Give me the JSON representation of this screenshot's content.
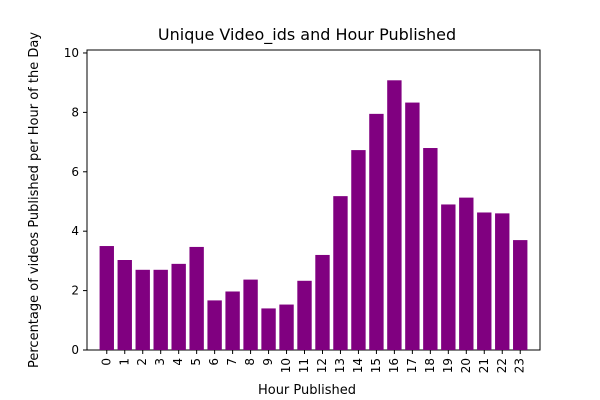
{
  "chart_data": {
    "type": "bar",
    "title": "Unique Video_ids and Hour Published",
    "xlabel": "Hour Published",
    "ylabel": "Percentage of videos Published per Hour of the Day",
    "categories": [
      "0",
      "1",
      "2",
      "3",
      "4",
      "5",
      "6",
      "7",
      "8",
      "9",
      "10",
      "11",
      "12",
      "13",
      "14",
      "15",
      "16",
      "17",
      "18",
      "19",
      "20",
      "21",
      "22",
      "23"
    ],
    "values": [
      3.5,
      3.03,
      2.7,
      2.7,
      2.9,
      3.47,
      1.67,
      1.97,
      2.37,
      1.4,
      1.53,
      2.33,
      3.2,
      5.18,
      6.73,
      7.95,
      9.08,
      8.33,
      6.8,
      4.9,
      5.13,
      4.63,
      4.6,
      3.7
    ],
    "yticks": [
      0,
      2,
      4,
      6,
      8,
      10
    ],
    "ylim": [
      0,
      10.1
    ],
    "bar_color": "#800080",
    "grid": false,
    "legend": "none"
  }
}
